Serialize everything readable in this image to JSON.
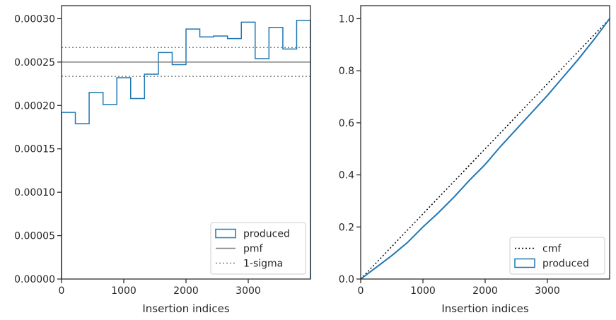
{
  "chart_data": [
    {
      "type": "step",
      "xlabel": "Insertion indices",
      "ylabel": "",
      "xlim": [
        0,
        4000
      ],
      "ylim": [
        0,
        0.000315
      ],
      "x_ticks": [
        0,
        1000,
        2000,
        3000
      ],
      "x_tick_labels": [
        "0",
        "1000",
        "2000",
        "3000"
      ],
      "y_ticks": [
        0,
        5e-05,
        0.0001,
        0.00015,
        0.0002,
        0.00025,
        0.0003
      ],
      "y_tick_labels": [
        "0.00000",
        "0.00005",
        "0.00010",
        "0.00015",
        "0.00020",
        "0.00025",
        "0.00030"
      ],
      "legend_position": "lower-right",
      "grid": false,
      "series": [
        {
          "name": "produced",
          "kind": "step-histogram",
          "color": "#1f77b4",
          "bin_edges": [
            0,
            222,
            444,
            667,
            889,
            1111,
            1333,
            1556,
            1778,
            2000,
            2222,
            2444,
            2667,
            2889,
            3111,
            3333,
            3556,
            3778,
            4000
          ],
          "values": [
            0.000192,
            0.000179,
            0.000215,
            0.000201,
            0.000232,
            0.000208,
            0.000236,
            0.000261,
            0.000247,
            0.000288,
            0.000279,
            0.00028,
            0.000277,
            0.000296,
            0.000254,
            0.00029,
            0.000265,
            0.000298
          ]
        },
        {
          "name": "pmf",
          "kind": "hline",
          "color": "#808080",
          "linestyle": "solid",
          "y": 0.00025
        },
        {
          "name": "1-sigma",
          "kind": "hline-pair",
          "color": "#808080",
          "linestyle": "dotted",
          "y": [
            0.0002335,
            0.0002668
          ]
        }
      ]
    },
    {
      "type": "line",
      "xlabel": "Insertion indices",
      "ylabel": "",
      "xlim": [
        0,
        4000
      ],
      "ylim": [
        0,
        1.05
      ],
      "x_ticks": [
        0,
        1000,
        2000,
        3000
      ],
      "x_tick_labels": [
        "0",
        "1000",
        "2000",
        "3000"
      ],
      "y_ticks": [
        0,
        0.2,
        0.4,
        0.6,
        0.8,
        1.0
      ],
      "y_tick_labels": [
        "0.0",
        "0.2",
        "0.4",
        "0.6",
        "0.8",
        "1.0"
      ],
      "legend_position": "lower-right",
      "grid": false,
      "series": [
        {
          "name": "cmf",
          "kind": "line",
          "color": "#000000",
          "linestyle": "dotted",
          "x": [
            0,
            4000
          ],
          "y": [
            0,
            1.0
          ]
        },
        {
          "name": "produced",
          "kind": "step-cumulative",
          "color": "#1f77b4",
          "x": [
            0,
            250,
            500,
            750,
            1000,
            1250,
            1500,
            1750,
            2000,
            2250,
            2500,
            2750,
            3000,
            3250,
            3500,
            3750,
            4000
          ],
          "y": [
            0,
            0.045,
            0.09,
            0.14,
            0.2,
            0.255,
            0.315,
            0.38,
            0.44,
            0.51,
            0.575,
            0.64,
            0.705,
            0.775,
            0.845,
            0.92,
            1.0
          ]
        }
      ]
    }
  ]
}
